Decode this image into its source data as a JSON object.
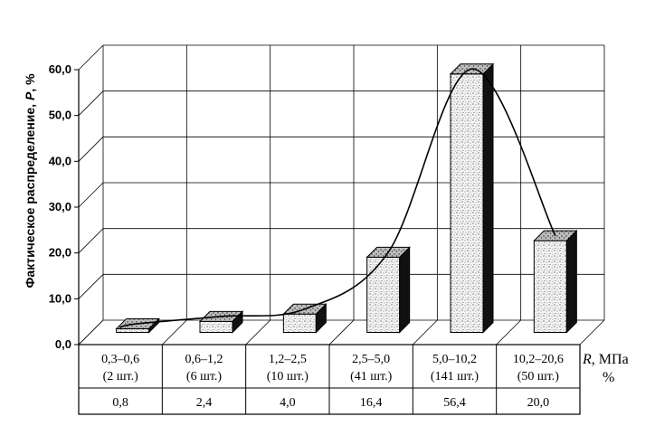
{
  "chart_data": {
    "type": "bar",
    "ylabel_prefix": "Фактическое распределение, ",
    "ylabel_var": "P",
    "ylabel_suffix": ", %",
    "ylim": [
      0,
      60
    ],
    "yticks": [
      "0,0",
      "10,0",
      "20,0",
      "30,0",
      "40,0",
      "50,0",
      "60,0"
    ],
    "categories": [
      {
        "range": "0,3–0,6",
        "count": "(2 шт.)",
        "pct": "0,8"
      },
      {
        "range": "0,6–1,2",
        "count": "(6 шт.)",
        "pct": "2,4"
      },
      {
        "range": "1,2–2,5",
        "count": "(10 шт.)",
        "pct": "4,0"
      },
      {
        "range": "2,5–5,0",
        "count": "(41 шт.)",
        "pct": "16,4"
      },
      {
        "range": "5,0–10,2",
        "count": "(141 шт.)",
        "pct": "56,4"
      },
      {
        "range": "10,2–20,6",
        "count": "(50 шт.)",
        "pct": "20,0"
      }
    ],
    "values": [
      0.8,
      2.4,
      4.0,
      16.4,
      56.4,
      20.0
    ],
    "row_header_var": "R",
    "row_header_unit": ", МПа",
    "row_header_pct": "%",
    "grid": true,
    "fit_curve": true
  }
}
